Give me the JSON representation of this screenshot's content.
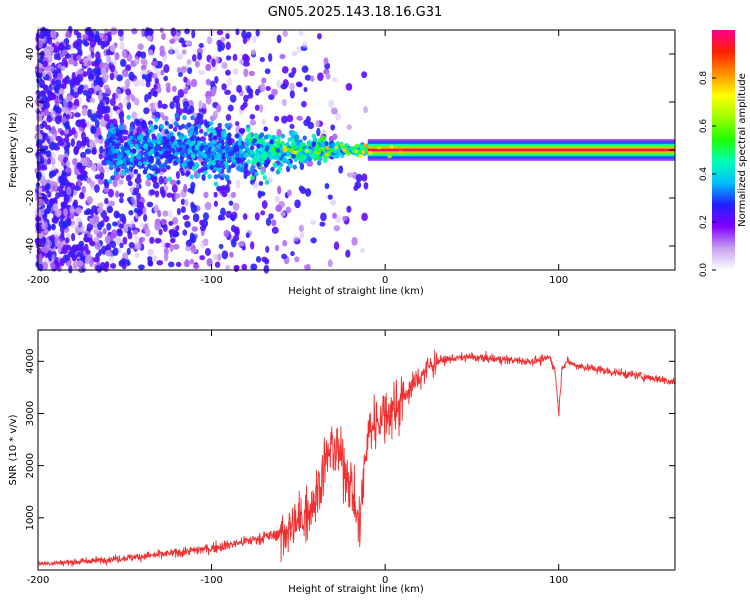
{
  "title": "GN05.2025.143.18.16.G31",
  "chart_data": [
    {
      "type": "heatmap",
      "title": "GN05.2025.143.18.16.G31",
      "xlabel": "Height of straight line (km)",
      "ylabel": "Frequency (Hz)",
      "xlim": [
        -200,
        167
      ],
      "ylim": [
        -50,
        50
      ],
      "xticks": [
        -200,
        -100,
        0,
        100
      ],
      "xtick_labels": [
        "-200",
        "-100",
        "0",
        "100"
      ],
      "yticks": [
        -40,
        -20,
        0,
        20,
        40
      ],
      "ytick_labels": [
        "-40",
        "-20",
        "0",
        "20",
        "40"
      ],
      "colorbar": {
        "label": "Normalized spectral amplitude",
        "range": [
          0,
          1
        ],
        "ticks": [
          0.0,
          0.2,
          0.4,
          0.6,
          0.8
        ],
        "tick_labels": [
          "0.0",
          "0.2",
          "0.4",
          "0.6",
          "0.8"
        ],
        "colors": [
          "#ffffff",
          "#c8a0f0",
          "#8000ff",
          "#2020ff",
          "#00c0ff",
          "#00ffb0",
          "#20ff00",
          "#a0ff00",
          "#ffff00",
          "#ff9000",
          "#ff2000",
          "#ff0090"
        ]
      },
      "features": [
        {
          "name": "tone line",
          "x_range": [
            0,
            167
          ],
          "frequency": 0,
          "amplitude": 0.85
        },
        {
          "name": "noise scatter",
          "x_range": [
            -200,
            -40
          ],
          "frequency_spread": 50,
          "amplitude": 0.2
        },
        {
          "name": "broadening",
          "x_range": [
            -60,
            -20
          ],
          "frequency_spread": 8,
          "amplitude": 0.4
        }
      ]
    },
    {
      "type": "line",
      "xlabel": "Height of straight line (km)",
      "ylabel": "SNR (10 * v/v)",
      "xlim": [
        -200,
        167
      ],
      "ylim": [
        0,
        4600
      ],
      "xticks": [
        -200,
        -100,
        0,
        100
      ],
      "xtick_labels": [
        "-200",
        "-100",
        "0",
        "100"
      ],
      "yticks": [
        1000,
        2000,
        3000,
        4000
      ],
      "ytick_labels": [
        "1000",
        "2000",
        "3000",
        "4000"
      ],
      "series": [
        {
          "name": "SNR",
          "color": "#f03030",
          "x": [
            -200,
            -180,
            -160,
            -140,
            -120,
            -100,
            -80,
            -60,
            -50,
            -40,
            -35,
            -30,
            -25,
            -20,
            -15,
            -10,
            -5,
            0,
            5,
            10,
            15,
            20,
            25,
            30,
            40,
            50,
            60,
            70,
            80,
            90,
            95,
            98,
            100,
            102,
            105,
            110,
            120,
            130,
            140,
            150,
            160,
            167
          ],
          "values": [
            120,
            150,
            200,
            260,
            330,
            420,
            550,
            700,
            900,
            1400,
            2000,
            2400,
            2100,
            1700,
            800,
            2600,
            2900,
            3000,
            3100,
            3300,
            3500,
            3700,
            3900,
            4000,
            4060,
            4080,
            4050,
            4030,
            4000,
            4020,
            4080,
            3800,
            3000,
            3900,
            4000,
            3920,
            3860,
            3800,
            3750,
            3700,
            3650,
            3600
          ]
        }
      ]
    }
  ]
}
